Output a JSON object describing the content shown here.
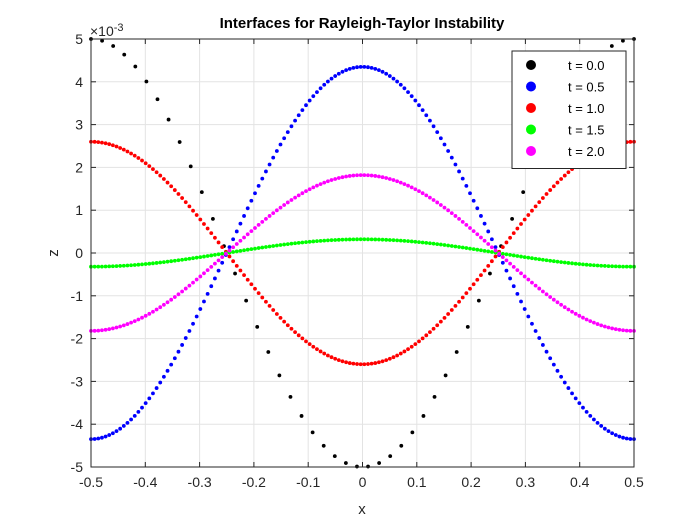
{
  "chart_data": {
    "type": "scatter",
    "title": "Interfaces for Rayleigh-Taylor Instability",
    "xlabel": "x",
    "ylabel": "z",
    "y_exponent_label": "×10",
    "y_exponent_power": "-3",
    "xlim": [
      -0.5,
      0.5
    ],
    "ylim": [
      -5,
      5
    ],
    "xticks": [
      -0.5,
      -0.4,
      -0.3,
      -0.2,
      -0.1,
      0,
      0.1,
      0.2,
      0.3,
      0.4,
      0.5
    ],
    "xtick_labels": [
      "-0.5",
      "-0.4",
      "-0.3",
      "-0.2",
      "-0.1",
      "0",
      "0.1",
      "0.2",
      "0.3",
      "0.4",
      "0.5"
    ],
    "yticks": [
      -5,
      -4,
      -3,
      -2,
      -1,
      0,
      1,
      2,
      3,
      4,
      5
    ],
    "ytick_labels": [
      "-5",
      "-4",
      "-3",
      "-2",
      "-1",
      "0",
      "1",
      "2",
      "3",
      "4",
      "5"
    ],
    "grid": true,
    "legend_position": "top-right",
    "series": [
      {
        "name": "t = 0.0",
        "color": "#000000",
        "amplitude": -5.0,
        "points": 50
      },
      {
        "name": "t = 0.5",
        "color": "#0000ff",
        "amplitude": 4.35,
        "points": 150
      },
      {
        "name": "t = 1.0",
        "color": "#ff0000",
        "amplitude": -2.6,
        "points": 150
      },
      {
        "name": "t = 1.5",
        "color": "#00ff00",
        "amplitude": 0.32,
        "points": 150
      },
      {
        "name": "t = 2.0",
        "color": "#ff00ff",
        "amplitude": 1.82,
        "points": 150
      }
    ]
  }
}
